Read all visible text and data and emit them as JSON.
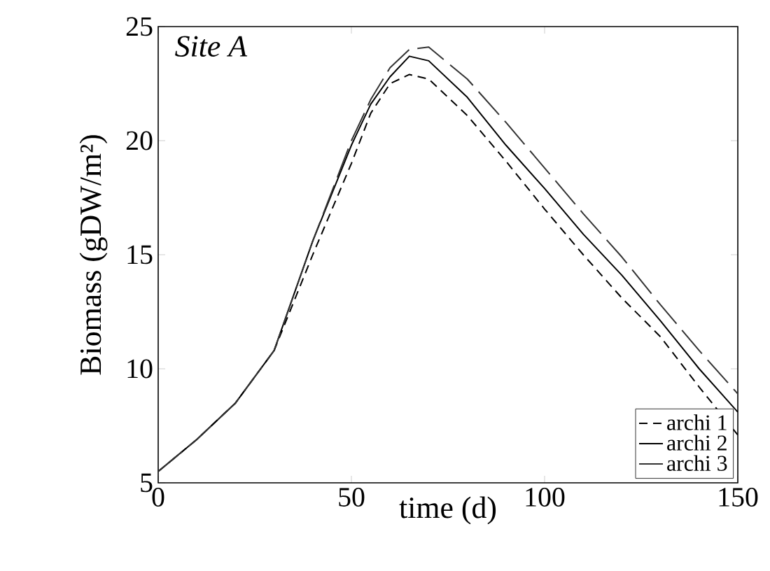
{
  "chart_data": {
    "type": "line",
    "xlabel": "time (d)",
    "ylabel": "Biomass (gDW/m²)",
    "annotations": [
      "Site A"
    ],
    "xlim": [
      0,
      150
    ],
    "ylim": [
      5,
      25
    ],
    "xticks": [
      0,
      50,
      100,
      150
    ],
    "yticks": [
      5,
      10,
      15,
      20,
      25
    ],
    "grid": false,
    "legend": "bottom right",
    "x": [
      0,
      10,
      20,
      30,
      40,
      50,
      55,
      60,
      65,
      70,
      80,
      90,
      100,
      110,
      120,
      130,
      140,
      150
    ],
    "series": [
      {
        "name": "archi 1",
        "color": "#000000",
        "line_style": "dashed",
        "values": [
          5.5,
          6.9,
          8.5,
          10.8,
          15.0,
          19.0,
          21.2,
          22.5,
          22.9,
          22.7,
          21.1,
          19.1,
          17.0,
          15.0,
          13.1,
          11.4,
          9.2,
          7.1
        ]
      },
      {
        "name": "archi 2",
        "color": "#000000",
        "line_style": "solid",
        "values": [
          5.5,
          6.9,
          8.5,
          10.8,
          15.6,
          19.8,
          21.6,
          22.8,
          23.7,
          23.5,
          21.9,
          19.8,
          17.9,
          15.9,
          14.1,
          12.1,
          10.0,
          8.1
        ]
      },
      {
        "name": "archi 3",
        "color": "#333333",
        "line_style": "dashed",
        "values": [
          5.5,
          6.9,
          8.5,
          10.8,
          15.6,
          20.0,
          21.8,
          23.2,
          24.0,
          24.1,
          22.7,
          20.8,
          18.8,
          16.8,
          14.9,
          12.8,
          10.8,
          8.9
        ]
      }
    ]
  }
}
